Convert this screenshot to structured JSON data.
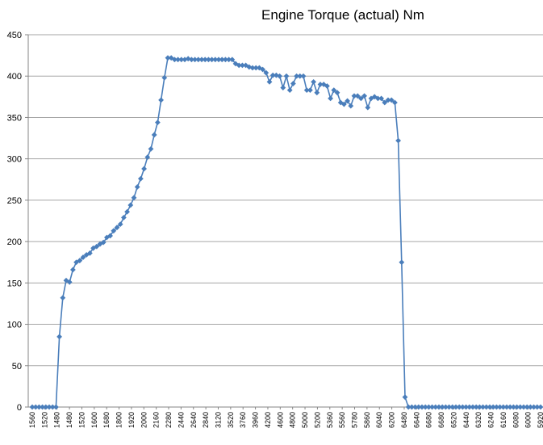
{
  "chart_data": {
    "type": "line",
    "title": "Engine Torque (actual)  Nm",
    "xlabel": "",
    "ylabel": "",
    "ylim": [
      0,
      450
    ],
    "yticks": [
      0,
      50,
      100,
      150,
      200,
      250,
      300,
      350,
      400,
      450
    ],
    "grid": "horizontal",
    "legend": "none",
    "marker": "diamond",
    "color": "#4a7ebb",
    "x_tick_labels": [
      "1560",
      "1520",
      "1480",
      "1480",
      "1520",
      "1600",
      "1680",
      "1800",
      "1920",
      "2000",
      "2160",
      "2280",
      "2440",
      "2640",
      "2840",
      "3120",
      "3520",
      "3760",
      "3960",
      "4200",
      "4600",
      "4800",
      "5000",
      "5200",
      "5360",
      "5560",
      "5780",
      "5860",
      "6040",
      "6200",
      "6480",
      "6640",
      "6680",
      "6680",
      "6520",
      "6440",
      "6320",
      "6240",
      "6160",
      "6080",
      "6000",
      "5920"
    ],
    "values": [
      0,
      0,
      0,
      0,
      0,
      0,
      0,
      0,
      85,
      132,
      153,
      151,
      166,
      175,
      177,
      181,
      184,
      186,
      192,
      194,
      197,
      199,
      205,
      207,
      213,
      217,
      221,
      229,
      236,
      244,
      253,
      266,
      276,
      288,
      302,
      312,
      329,
      344,
      371,
      398,
      422,
      422,
      420,
      420,
      420,
      420,
      421,
      420,
      420,
      420,
      420,
      420,
      420,
      420,
      420,
      420,
      420,
      420,
      420,
      420,
      415,
      413,
      413,
      413,
      411,
      410,
      410,
      410,
      408,
      404,
      393,
      401,
      401,
      400,
      386,
      400,
      383,
      391,
      400,
      400,
      400,
      383,
      383,
      393,
      380,
      390,
      390,
      388,
      373,
      383,
      380,
      368,
      366,
      370,
      364,
      376,
      376,
      373,
      376,
      362,
      373,
      375,
      373,
      373,
      368,
      371,
      371,
      368,
      322,
      175,
      12,
      0,
      0,
      0,
      0,
      0,
      0,
      0,
      0,
      0,
      0,
      0,
      0,
      0,
      0,
      0,
      0,
      0,
      0,
      0,
      0,
      0,
      0,
      0,
      0,
      0,
      0,
      0,
      0,
      0,
      0,
      0,
      0,
      0,
      0,
      0,
      0,
      0,
      0,
      0,
      0
    ]
  }
}
